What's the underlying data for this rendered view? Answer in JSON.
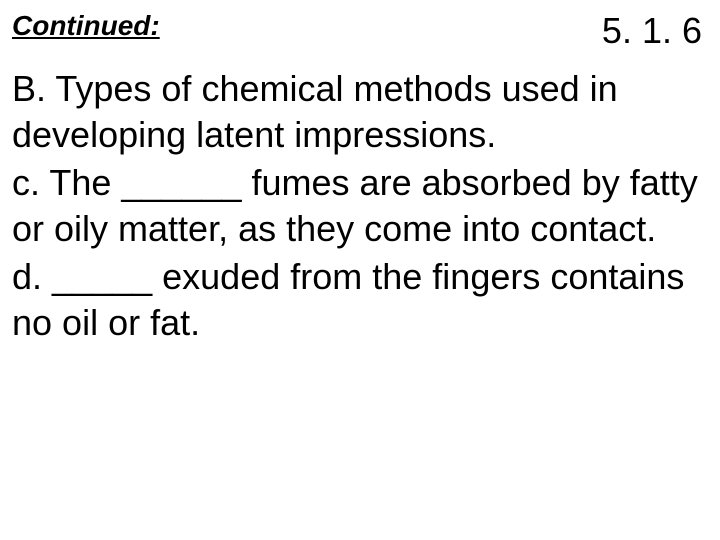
{
  "header": {
    "continued_label": "Continued:",
    "section_number": "5. 1. 6"
  },
  "content": {
    "heading": "B.  Types of chemical methods used in developing latent impressions.",
    "point_c": "c. The ______ fumes are absorbed by fatty or oily matter, as they come into contact.",
    "point_d": "d.  _____ exuded from the fingers contains no oil or fat."
  },
  "styling": {
    "background_color": "#ffffff",
    "text_color": "#000000",
    "continued_fontsize": 28,
    "section_number_fontsize": 36,
    "body_fontsize": 36,
    "font_family": "Arial"
  }
}
